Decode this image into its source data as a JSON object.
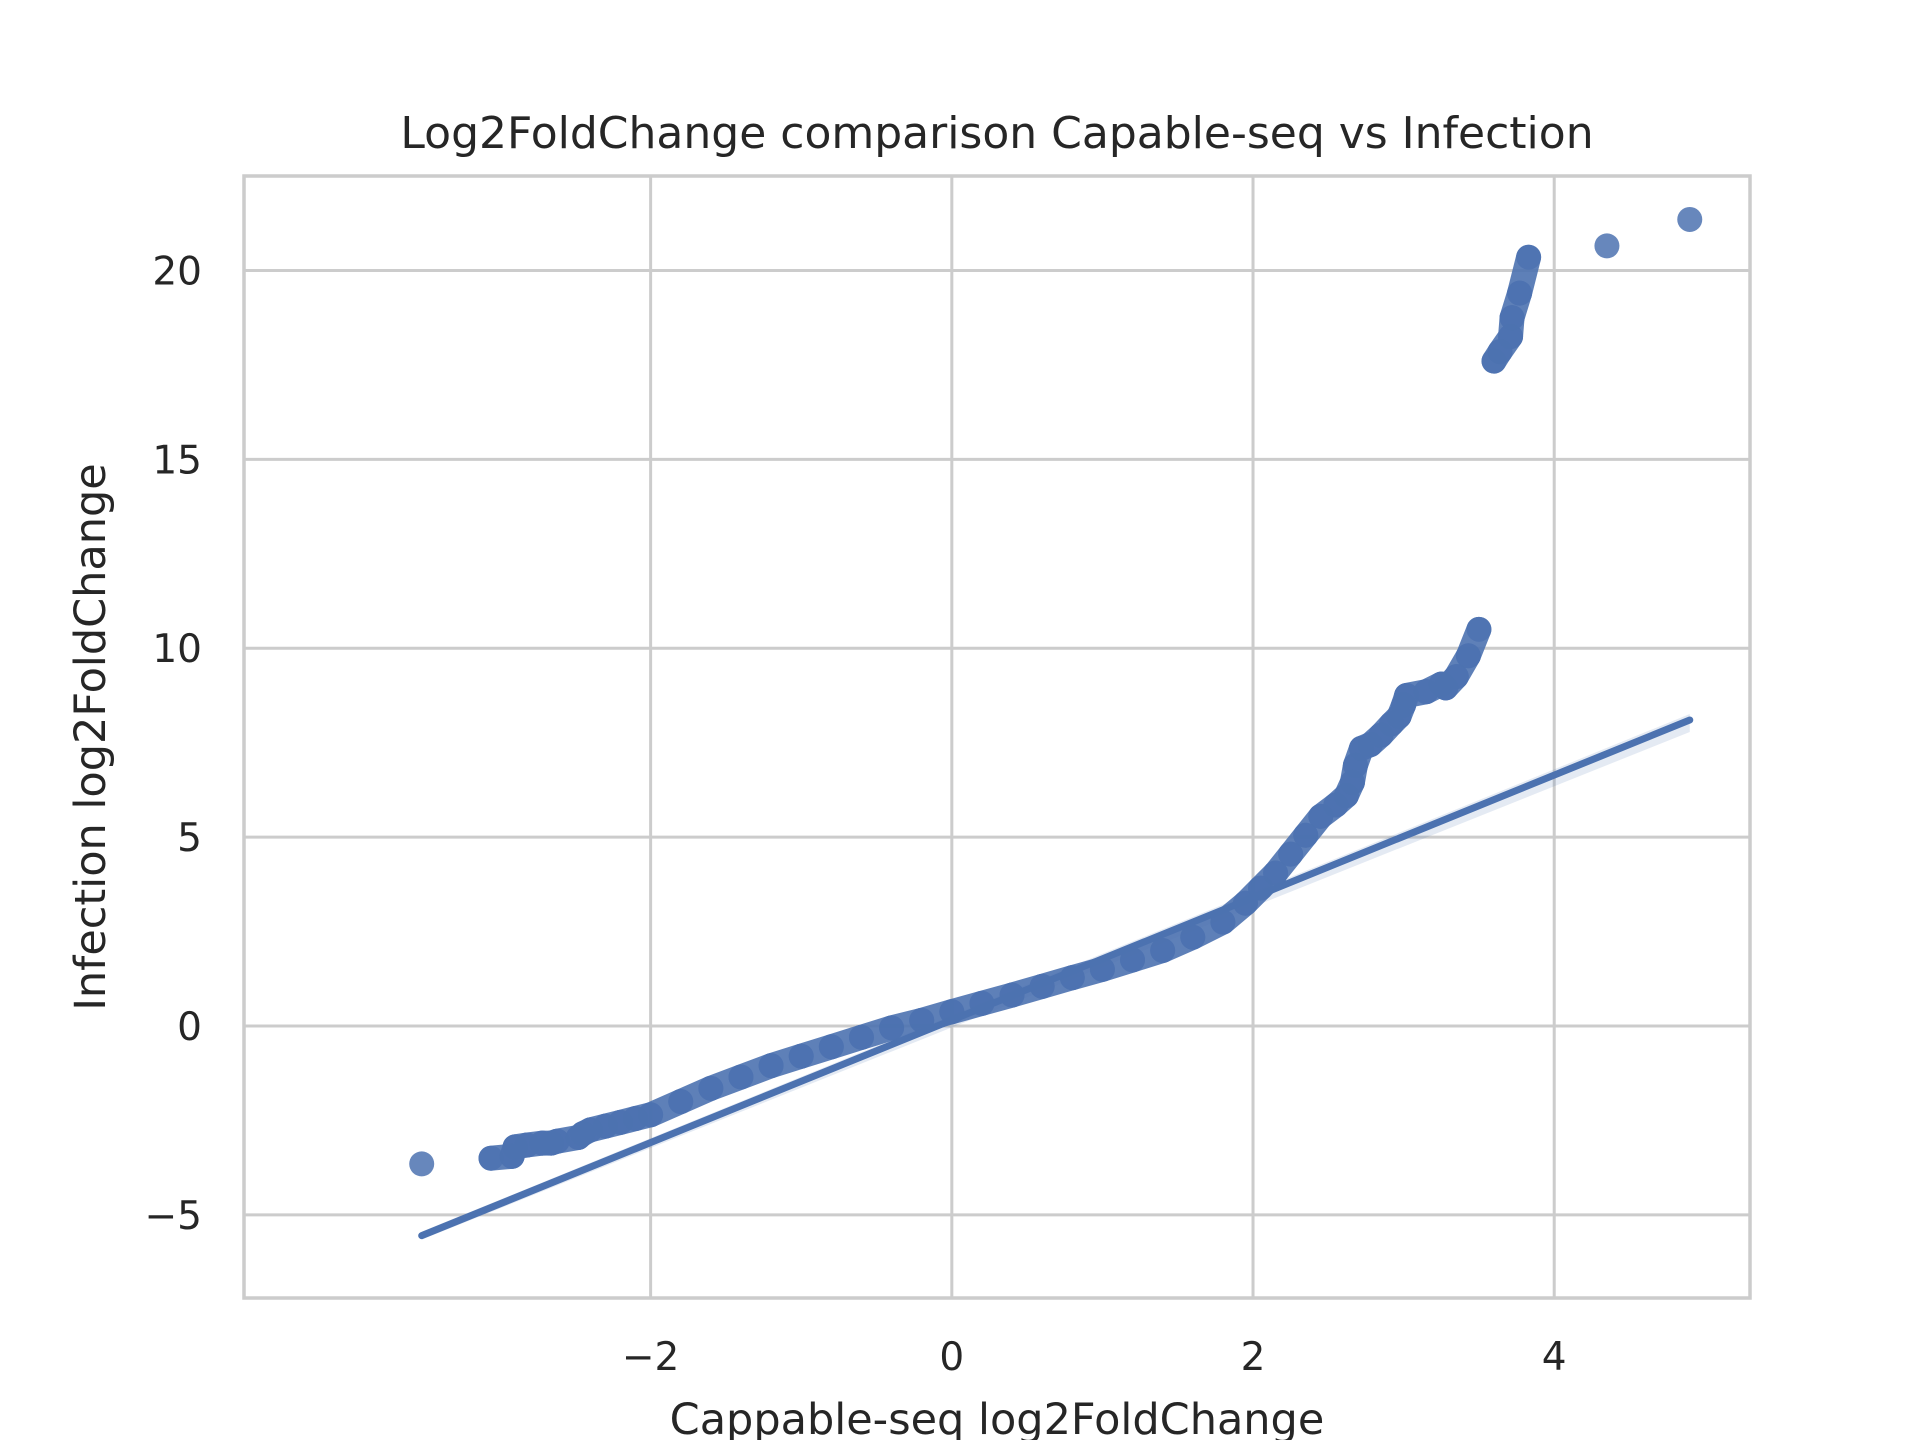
{
  "chart_data": {
    "type": "scatter",
    "title": "Log2FoldChange comparison Capable-seq vs Infection",
    "xlabel": "Cappable-seq log2FoldChange",
    "ylabel": "Infection log2FoldChange",
    "xlim": [
      -4.7,
      5.3
    ],
    "ylim": [
      -7.2,
      22.5
    ],
    "xticks": [
      -2,
      0,
      2,
      4
    ],
    "xtick_labels": [
      "−2",
      "0",
      "2",
      "4"
    ],
    "yticks": [
      -5,
      0,
      5,
      10,
      15,
      20
    ],
    "ytick_labels": [
      "−5",
      "0",
      "5",
      "10",
      "15",
      "20"
    ],
    "grid": true,
    "legend": "none",
    "colors": {
      "points": "#4c72b0",
      "line": "#4c72b0",
      "grid": "#cccccc",
      "axes": "#cccccc"
    },
    "series": [
      {
        "kind": "points",
        "x": [
          -3.52,
          -3.06,
          -2.92,
          -2.9,
          -2.82,
          -2.72,
          -2.66,
          -2.62,
          -2.48,
          -2.45,
          -2.4,
          -2.3,
          -2.2,
          -2.1,
          -2.0,
          -1.8,
          -1.6,
          -1.4,
          -1.2,
          -1.0,
          -0.8,
          -0.6,
          -0.4,
          -0.2,
          0.0,
          0.2,
          0.4,
          0.6,
          0.8,
          1.0,
          1.2,
          1.4,
          1.6,
          1.8,
          1.95,
          2.05,
          2.15,
          2.25,
          2.35,
          2.45,
          2.55,
          2.62,
          2.66,
          2.68,
          2.72,
          2.78,
          2.85,
          2.92,
          2.97,
          3.0,
          3.02,
          3.15,
          3.25,
          3.28,
          3.35,
          3.43,
          3.5,
          3.6,
          3.64,
          3.71,
          3.72,
          3.77,
          3.83,
          4.35,
          4.9
        ],
        "y": [
          -3.65,
          -3.5,
          -3.45,
          -3.2,
          -3.15,
          -3.1,
          -3.1,
          -3.05,
          -2.95,
          -2.85,
          -2.75,
          -2.65,
          -2.55,
          -2.45,
          -2.35,
          -2.0,
          -1.65,
          -1.35,
          -1.05,
          -0.8,
          -0.55,
          -0.3,
          -0.05,
          0.15,
          0.38,
          0.6,
          0.82,
          1.05,
          1.28,
          1.5,
          1.75,
          2.0,
          2.35,
          2.75,
          3.25,
          3.65,
          4.05,
          4.55,
          5.05,
          5.55,
          5.85,
          6.1,
          6.45,
          6.9,
          7.35,
          7.45,
          7.7,
          8.0,
          8.2,
          8.5,
          8.75,
          8.85,
          9.05,
          8.95,
          9.25,
          9.8,
          10.5,
          17.6,
          17.85,
          18.25,
          18.75,
          19.4,
          20.35,
          20.65,
          21.35
        ]
      },
      {
        "kind": "regression-line",
        "x": [
          -3.52,
          4.9
        ],
        "y": [
          -5.55,
          8.1
        ]
      }
    ]
  }
}
